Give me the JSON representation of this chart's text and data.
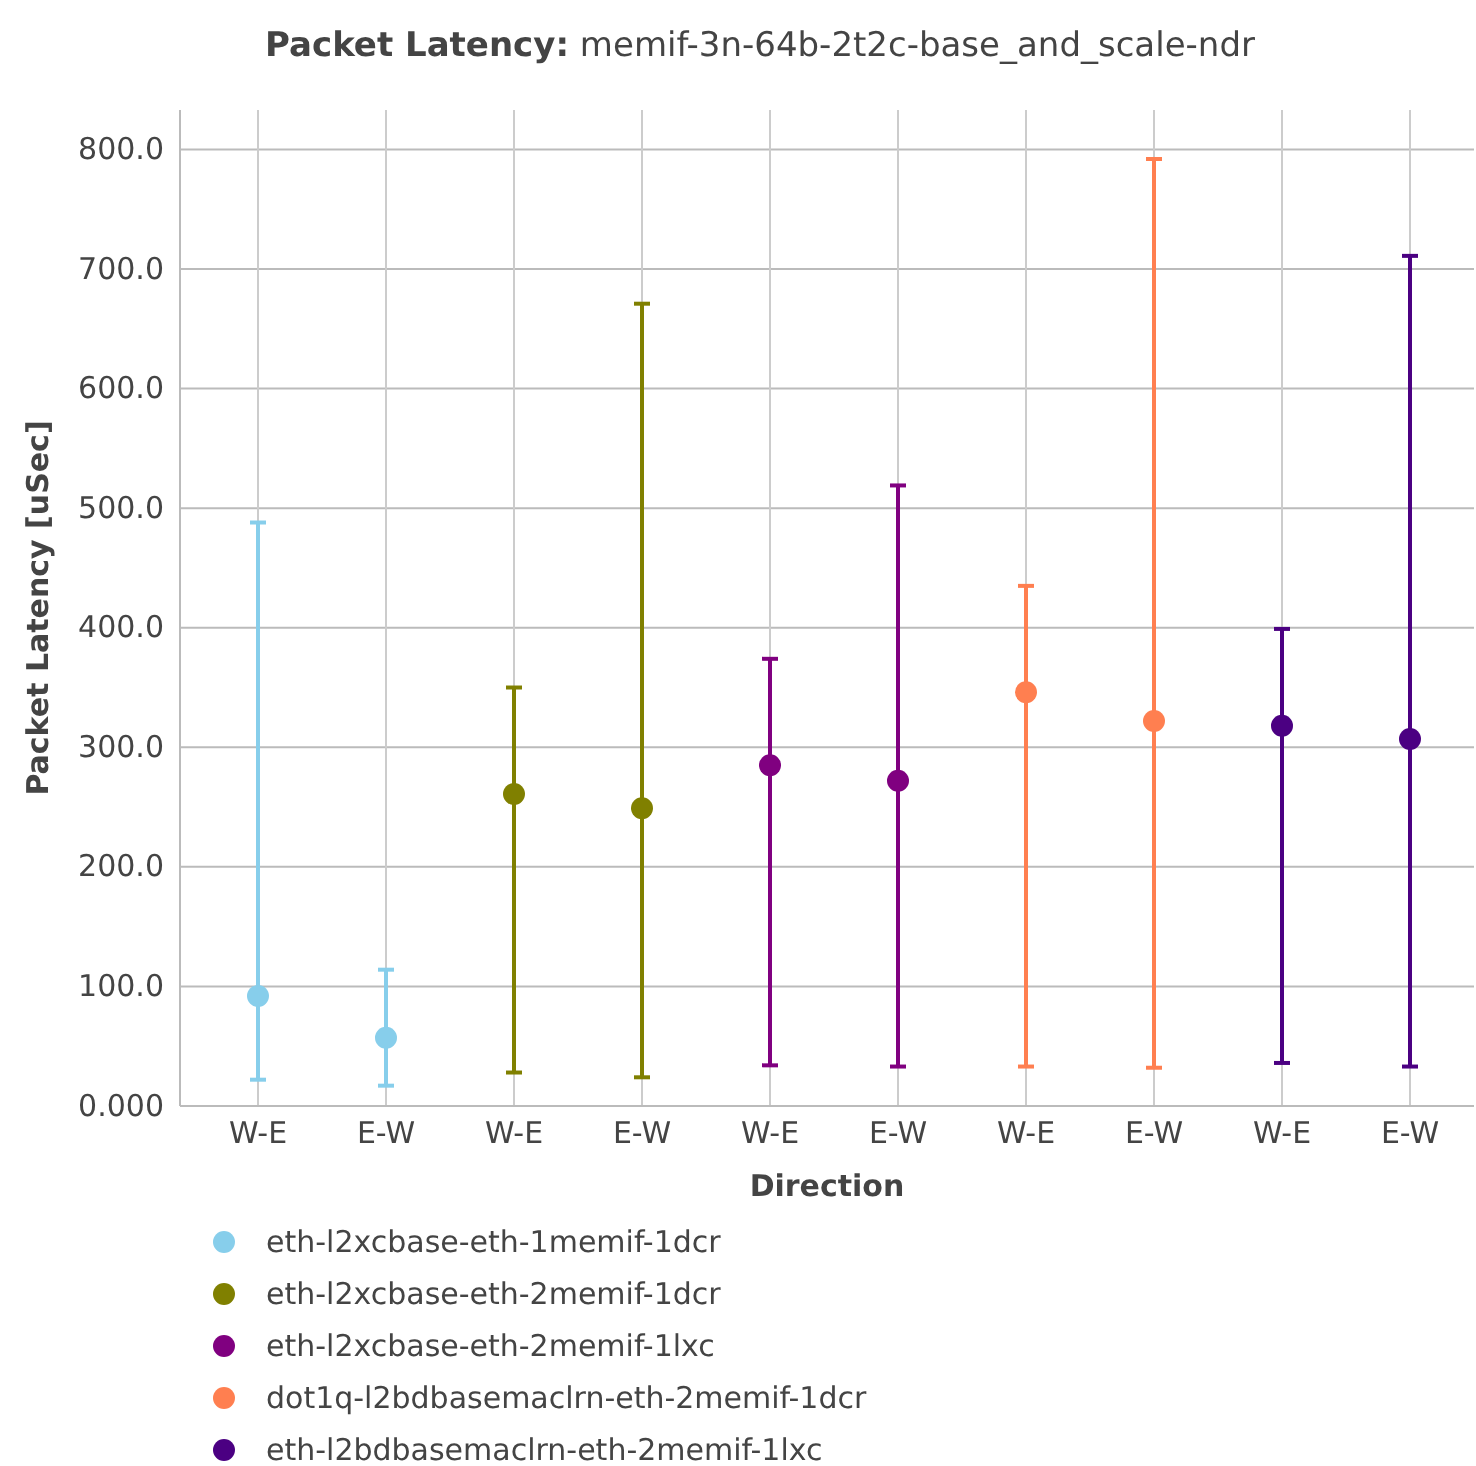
{
  "chart_data": {
    "type": "scatter",
    "title": "Packet Latency: memif-3n-64b-2t2c-base_and_scale-ndr",
    "xlabel": "Direction",
    "ylabel": "Packet Latency [uSec]",
    "categories": [
      "W-E",
      "E-W",
      "W-E",
      "E-W",
      "W-E",
      "E-W",
      "W-E",
      "E-W",
      "W-E",
      "E-W"
    ],
    "ylim": [
      0,
      833
    ],
    "yticks": [
      {
        "value": 0,
        "label": "0.000"
      },
      {
        "value": 100,
        "label": "100.0"
      },
      {
        "value": 200,
        "label": "200.0"
      },
      {
        "value": 300,
        "label": "300.0"
      },
      {
        "value": 400,
        "label": "400.0"
      },
      {
        "value": 500,
        "label": "500.0"
      },
      {
        "value": 600,
        "label": "600.0"
      },
      {
        "value": 700,
        "label": "700.0"
      },
      {
        "value": 800,
        "label": "800.0"
      }
    ],
    "grid": true,
    "legend": "bottom",
    "marker": "circle",
    "series": [
      {
        "name": "eth-l2xcbase-eth-1memif-1dcr",
        "color": "#87ceeb",
        "values": [
          92,
          57,
          null,
          null,
          null,
          null,
          null,
          null,
          null,
          null
        ],
        "errors": [
          [
            22,
            488
          ],
          [
            17,
            114
          ],
          null,
          null,
          null,
          null,
          null,
          null,
          null,
          null
        ]
      },
      {
        "name": "eth-l2xcbase-eth-2memif-1dcr",
        "color": "#808000",
        "values": [
          null,
          null,
          261,
          249,
          null,
          null,
          null,
          null,
          null,
          null
        ],
        "errors": [
          null,
          null,
          [
            28,
            350
          ],
          [
            24,
            671
          ],
          null,
          null,
          null,
          null,
          null,
          null
        ]
      },
      {
        "name": "eth-l2xcbase-eth-2memif-1lxc",
        "color": "#800080",
        "values": [
          null,
          null,
          null,
          null,
          285,
          272,
          null,
          null,
          null,
          null
        ],
        "errors": [
          null,
          null,
          null,
          null,
          [
            34,
            374
          ],
          [
            33,
            519
          ],
          null,
          null,
          null,
          null
        ]
      },
      {
        "name": "dot1q-l2bdbasemaclrn-eth-2memif-1dcr",
        "color": "#ff7f50",
        "values": [
          null,
          null,
          null,
          null,
          null,
          null,
          346,
          322,
          null,
          null
        ],
        "errors": [
          null,
          null,
          null,
          null,
          null,
          null,
          [
            33,
            435
          ],
          [
            32,
            792
          ],
          null,
          null
        ]
      },
      {
        "name": "eth-l2bdbasemaclrn-eth-2memif-1lxc",
        "color": "#4b0082",
        "values": [
          null,
          null,
          null,
          null,
          null,
          null,
          null,
          null,
          318,
          307
        ],
        "errors": [
          null,
          null,
          null,
          null,
          null,
          null,
          null,
          null,
          [
            36,
            399
          ],
          [
            33,
            711
          ]
        ]
      }
    ]
  }
}
